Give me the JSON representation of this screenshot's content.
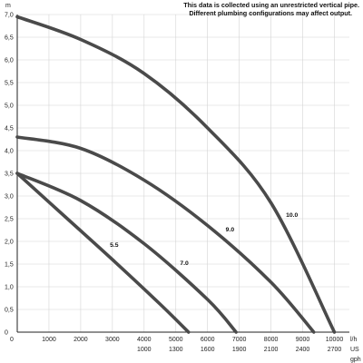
{
  "chart_data": {
    "type": "line",
    "title": "",
    "notes": [
      "This data is collected using an unrestricted vertical pipe.",
      "Different plumbing configurations may affect output."
    ],
    "ylabel": "m",
    "xlabel_primary_unit": "l/h",
    "xlabel_secondary_unit": [
      "US",
      "gph"
    ],
    "xlim": [
      0,
      10400
    ],
    "ylim": [
      0,
      7
    ],
    "y_ticks": [
      "0",
      "0,5",
      "1,0",
      "1,5",
      "2,0",
      "2,5",
      "3,0",
      "3,5",
      "4,0",
      "4,5",
      "5,0",
      "5,5",
      "6,0",
      "6,5",
      "7,0"
    ],
    "x_ticks": [
      {
        "lph": 0,
        "label": "0",
        "gph": ""
      },
      {
        "lph": 1000,
        "label": "1000",
        "gph": ""
      },
      {
        "lph": 2000,
        "label": "2000",
        "gph": ""
      },
      {
        "lph": 3000,
        "label": "3000",
        "gph": ""
      },
      {
        "lph": 4000,
        "label": "4000",
        "gph": "1000"
      },
      {
        "lph": 5000,
        "label": "5000",
        "gph": "1300"
      },
      {
        "lph": 6000,
        "label": "6000",
        "gph": "1600"
      },
      {
        "lph": 7000,
        "label": "7000",
        "gph": "1900"
      },
      {
        "lph": 8000,
        "label": "8000",
        "gph": "2100"
      },
      {
        "lph": 9000,
        "label": "9000",
        "gph": "2400"
      },
      {
        "lph": 10000,
        "label": "10000",
        "gph": "2700"
      }
    ],
    "grid": true,
    "series": [
      {
        "name": "5.5",
        "x": [
          0,
          1500,
          3000,
          4500,
          5400
        ],
        "y": [
          3.5,
          2.55,
          1.6,
          0.62,
          0
        ]
      },
      {
        "name": "7.0",
        "x": [
          0,
          2000,
          4000,
          6000,
          6900
        ],
        "y": [
          3.5,
          2.9,
          1.95,
          0.72,
          0
        ]
      },
      {
        "name": "9.0",
        "x": [
          0,
          2000,
          4000,
          6000,
          8000,
          9350
        ],
        "y": [
          4.3,
          4.05,
          3.35,
          2.35,
          1.1,
          0
        ]
      },
      {
        "name": "10.0",
        "x": [
          0,
          2000,
          4000,
          6000,
          8000,
          10000
        ],
        "y": [
          6.95,
          6.45,
          5.7,
          4.5,
          2.85,
          0
        ]
      }
    ]
  }
}
